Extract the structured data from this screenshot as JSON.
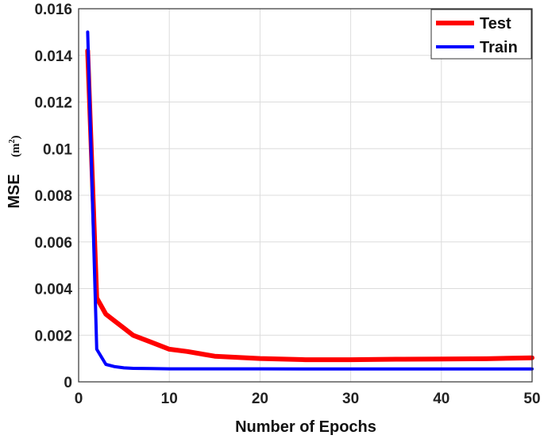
{
  "chart_data": {
    "type": "line",
    "title": "",
    "xlabel": "Number of Epochs",
    "ylabel": "MSE",
    "ylabel_unit": "(m",
    "ylabel_unit_exp": "2",
    "ylabel_unit_close": ")",
    "xlim": [
      0,
      50
    ],
    "ylim": [
      0,
      0.016
    ],
    "xticks": [
      0,
      10,
      20,
      30,
      40,
      50
    ],
    "yticks": [
      "0",
      "0.002",
      "0.004",
      "0.006",
      "0.008",
      "0.01",
      "0.012",
      "0.014",
      "0.016"
    ],
    "grid": true,
    "legend": "top-right",
    "series": [
      {
        "name": "Test",
        "color": "#ff0000",
        "x": [
          1,
          2,
          3,
          4,
          5,
          6,
          8,
          10,
          12,
          15,
          20,
          25,
          30,
          35,
          40,
          45,
          50
        ],
        "y": [
          0.0142,
          0.0036,
          0.0029,
          0.0026,
          0.0023,
          0.002,
          0.0017,
          0.0014,
          0.0013,
          0.0011,
          0.001,
          0.00095,
          0.00095,
          0.00097,
          0.00098,
          0.00099,
          0.00103
        ]
      },
      {
        "name": "Train",
        "color": "#0000ff",
        "x": [
          1,
          2,
          3,
          4,
          5,
          6,
          8,
          10,
          15,
          20,
          30,
          40,
          50
        ],
        "y": [
          0.015,
          0.0014,
          0.00075,
          0.00065,
          0.0006,
          0.00058,
          0.00057,
          0.00056,
          0.00056,
          0.00056,
          0.00055,
          0.00055,
          0.00055
        ]
      }
    ]
  }
}
